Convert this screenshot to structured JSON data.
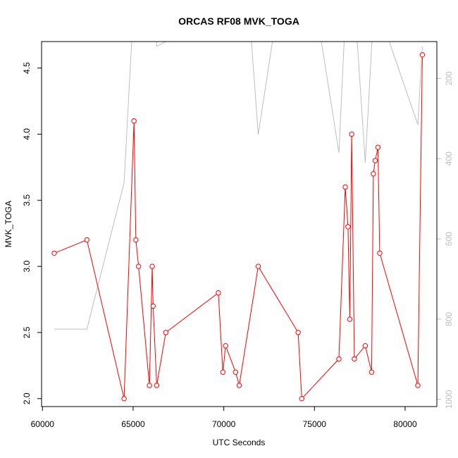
{
  "chart_data": {
    "type": "line",
    "title": "ORCAS RF08 MVK_TOGA",
    "xlabel": "UTC Seconds",
    "ylabel": "MVK_TOGA",
    "xlim": [
      59950,
      81750
    ],
    "ylim": [
      1.94,
      4.7
    ],
    "x_ticks": [
      60000,
      65000,
      70000,
      75000,
      80000
    ],
    "y_ticks": [
      2.0,
      2.5,
      3.0,
      3.5,
      4.0,
      4.5
    ],
    "y2_ticks": [
      200,
      400,
      600,
      800,
      1000
    ],
    "y2_range_top_to_bottom": [
      108,
      1018
    ],
    "grid": false,
    "series": [
      {
        "color": "#ff0000",
        "marker": "circle",
        "x": [
          60650,
          62450,
          64500,
          65050,
          65150,
          65300,
          65900,
          66050,
          66100,
          66300,
          66800,
          69700,
          69950,
          70100,
          70650,
          70850,
          71900,
          74100,
          74300,
          76350,
          76700,
          76850,
          76950,
          77050,
          77200,
          77800,
          78150,
          78250,
          78350,
          78500,
          78600,
          80700,
          80950
        ],
        "values": [
          3.1,
          3.2,
          2.0,
          4.1,
          3.2,
          3.0,
          2.1,
          3.0,
          2.7,
          2.1,
          2.5,
          2.8,
          2.2,
          2.4,
          2.2,
          2.1,
          3.0,
          2.5,
          2.0,
          2.3,
          3.6,
          3.3,
          2.6,
          4.0,
          2.3,
          2.4,
          2.2,
          3.7,
          3.8,
          3.9,
          3.1,
          2.1,
          4.6
        ]
      },
      {
        "color": "#bebebe",
        "marker": "none",
        "axis": "right",
        "x": [
          60650,
          62450,
          64500,
          65050,
          66300,
          66300,
          71350,
          71900,
          73050,
          75000,
          76350,
          76750,
          77200,
          77800,
          78300,
          80700,
          80950
        ],
        "values": [
          825,
          825,
          460,
          0,
          0,
          120,
          0,
          340,
          0,
          0,
          385,
          0,
          0,
          410,
          0,
          315,
          120
        ]
      }
    ]
  }
}
